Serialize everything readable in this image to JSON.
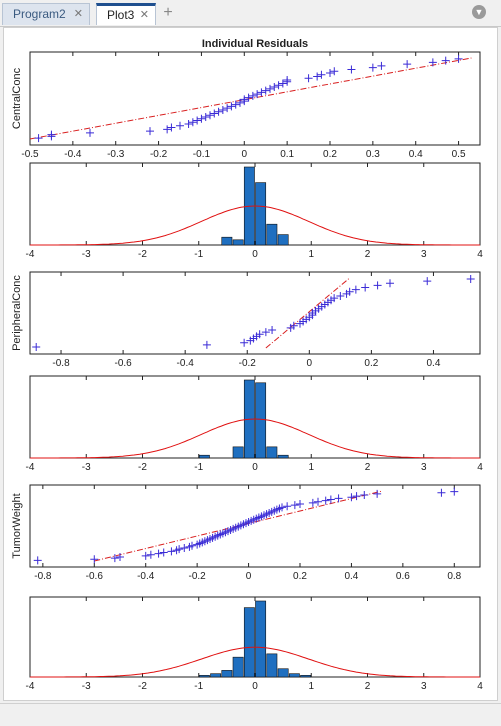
{
  "tabs": [
    {
      "label": "Program2",
      "active": false
    },
    {
      "label": "Plot3",
      "active": true
    }
  ],
  "icons": {
    "close": "close-icon",
    "add": "plus-icon",
    "menu": "chevron-down-icon"
  },
  "colors": {
    "marker": "#3a2bd6",
    "fitline": "#d92020",
    "bars": "#1f6fc0",
    "curve": "#e01010"
  },
  "chart_data": [
    {
      "type": "scatter",
      "title": "Individual Residuals",
      "ylabel": "CentralConc",
      "xlim": [
        -0.5,
        0.55
      ],
      "xticks": [
        -0.5,
        -0.4,
        -0.3,
        -0.2,
        -0.1,
        0,
        0.1,
        0.2,
        0.3,
        0.4,
        0.5
      ],
      "x": [
        -0.48,
        -0.45,
        -0.45,
        -0.36,
        -0.22,
        -0.18,
        -0.17,
        -0.15,
        -0.13,
        -0.12,
        -0.11,
        -0.1,
        -0.09,
        -0.08,
        -0.07,
        -0.06,
        -0.05,
        -0.04,
        -0.03,
        -0.02,
        -0.01,
        0,
        0,
        0.01,
        0.02,
        0.03,
        0.04,
        0.05,
        0.06,
        0.07,
        0.08,
        0.09,
        0.1,
        0.1,
        0.15,
        0.17,
        0.18,
        0.2,
        0.21,
        0.25,
        0.3,
        0.32,
        0.38,
        0.44,
        0.47,
        0.5
      ],
      "fit_line": [
        [
          -0.5,
          0.0
        ],
        [
          0.53,
          1.0
        ]
      ],
      "y_quantile": true
    },
    {
      "type": "bar",
      "xlim": [
        -4,
        4
      ],
      "xticks": [
        -4,
        -3,
        -2,
        -1,
        0,
        1,
        2,
        3,
        4
      ],
      "bin_centers": [
        -0.5,
        -0.3,
        -0.1,
        0.1,
        0.3,
        0.5
      ],
      "counts": [
        3,
        2,
        30,
        24,
        8,
        4
      ],
      "normal_curve": {
        "mean": 0,
        "sd": 0.95,
        "peak": 15
      }
    },
    {
      "type": "scatter",
      "ylabel": "PeripheralConc",
      "xlim": [
        -0.9,
        0.55
      ],
      "xticks": [
        -0.8,
        -0.6,
        -0.4,
        -0.2,
        0,
        0.2,
        0.4
      ],
      "x": [
        -0.88,
        -0.33,
        -0.21,
        -0.19,
        -0.18,
        -0.17,
        -0.16,
        -0.14,
        -0.12,
        -0.06,
        -0.05,
        -0.03,
        -0.02,
        -0.01,
        0,
        0.01,
        0.01,
        0.02,
        0.03,
        0.04,
        0.05,
        0.06,
        0.07,
        0.08,
        0.1,
        0.12,
        0.13,
        0.15,
        0.18,
        0.22,
        0.26,
        0.38,
        0.52
      ],
      "fit_line": [
        [
          -0.14,
          0.0
        ],
        [
          0.13,
          1.0
        ]
      ],
      "y_quantile": true
    },
    {
      "type": "bar",
      "xlim": [
        -4,
        4
      ],
      "xticks": [
        -4,
        -3,
        -2,
        -1,
        0,
        1,
        2,
        3,
        4
      ],
      "bin_centers": [
        -0.9,
        -0.3,
        -0.1,
        0.1,
        0.3,
        0.5
      ],
      "counts": [
        1,
        4,
        28,
        27,
        4,
        1
      ],
      "normal_curve": {
        "mean": 0,
        "sd": 0.95,
        "peak": 14
      }
    },
    {
      "type": "scatter",
      "ylabel": "TumorWeight",
      "xlim": [
        -0.85,
        0.9
      ],
      "xticks": [
        -0.8,
        -0.6,
        -0.4,
        -0.2,
        0,
        0.2,
        0.4,
        0.6,
        0.8
      ],
      "x": [
        -0.82,
        -0.6,
        -0.52,
        -0.5,
        -0.4,
        -0.38,
        -0.35,
        -0.33,
        -0.3,
        -0.28,
        -0.27,
        -0.25,
        -0.23,
        -0.22,
        -0.2,
        -0.19,
        -0.18,
        -0.17,
        -0.16,
        -0.15,
        -0.14,
        -0.13,
        -0.12,
        -0.11,
        -0.1,
        -0.09,
        -0.08,
        -0.07,
        -0.06,
        -0.05,
        -0.04,
        -0.03,
        -0.02,
        -0.01,
        0,
        0.01,
        0.02,
        0.03,
        0.04,
        0.05,
        0.06,
        0.07,
        0.08,
        0.09,
        0.1,
        0.11,
        0.12,
        0.13,
        0.15,
        0.18,
        0.2,
        0.25,
        0.27,
        0.3,
        0.32,
        0.35,
        0.4,
        0.42,
        0.45,
        0.5,
        0.75,
        0.8
      ],
      "fit_line": [
        [
          -0.6,
          0.0
        ],
        [
          0.52,
          1.0
        ]
      ],
      "y_quantile": true
    },
    {
      "type": "bar",
      "xlim": [
        -4,
        4
      ],
      "xticks": [
        -4,
        -3,
        -2,
        -1,
        0,
        1,
        2,
        3,
        4
      ],
      "bin_centers": [
        -0.9,
        -0.7,
        -0.5,
        -0.3,
        -0.1,
        0.1,
        0.3,
        0.5,
        0.7,
        0.9
      ],
      "counts": [
        1,
        2,
        4,
        12,
        42,
        46,
        14,
        5,
        2,
        1
      ],
      "normal_curve": {
        "mean": 0,
        "sd": 0.95,
        "peak": 18
      }
    }
  ]
}
